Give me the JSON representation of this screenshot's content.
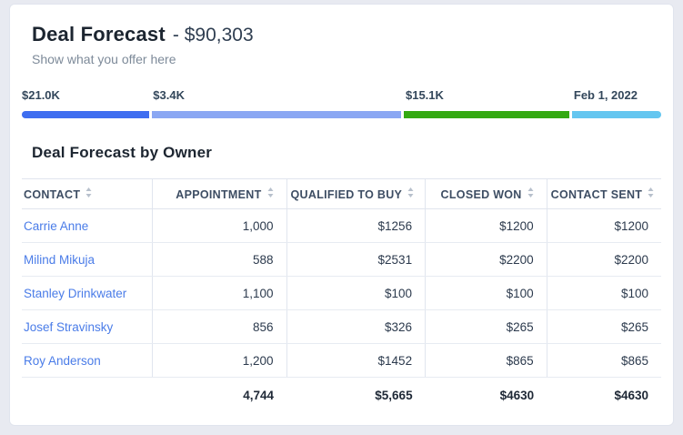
{
  "header": {
    "title": "Deal Forecast",
    "title_value": "- $90,303",
    "subtitle": "Show what you offer here"
  },
  "funnel": {
    "segments": [
      {
        "label": "$21.0K",
        "color": "#3e6df0",
        "width_pct": 20.1
      },
      {
        "label": "$3.4K",
        "color": "#8aa7f3",
        "width_pct": 39.5
      },
      {
        "label": "$15.1K",
        "color": "#33a911",
        "width_pct": 26.3
      },
      {
        "label": "Feb 1, 2022",
        "color": "#64c6f0",
        "width_pct": 14.1
      }
    ]
  },
  "table": {
    "title": "Deal Forecast by Owner",
    "columns": [
      "CONTACT",
      "APPOINTMENT",
      "QUALIFIED TO BUY",
      "CLOSED WON",
      "CONTACT SENT"
    ],
    "rows": [
      {
        "contact": "Carrie Anne",
        "appointment": "1,000",
        "qualified": "$1256",
        "closed": "$1200",
        "sent": "$1200"
      },
      {
        "contact": "Milind Mikuja",
        "appointment": "588",
        "qualified": "$2531",
        "closed": "$2200",
        "sent": "$2200"
      },
      {
        "contact": "Stanley Drinkwater",
        "appointment": "1,100",
        "qualified": "$100",
        "closed": "$100",
        "sent": "$100"
      },
      {
        "contact": "Josef Stravinsky",
        "appointment": "856",
        "qualified": "$326",
        "closed": "$265",
        "sent": "$265"
      },
      {
        "contact": "Roy Anderson",
        "appointment": "1,200",
        "qualified": "$1452",
        "closed": "$865",
        "sent": "$865"
      }
    ],
    "totals": {
      "appointment": "4,744",
      "qualified": "$5,665",
      "closed": "$4630",
      "sent": "$4630"
    }
  }
}
